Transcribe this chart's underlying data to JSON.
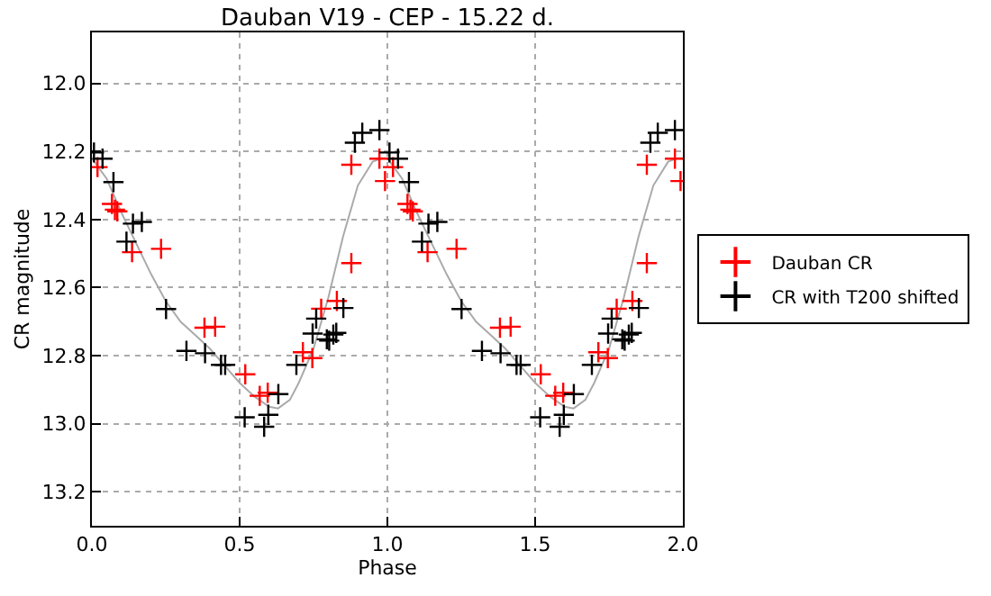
{
  "chart_data": {
    "type": "scatter",
    "title": "Dauban V19 - CEP - 15.22 d.",
    "xlabel": "Phase",
    "ylabel": "CR magnitude",
    "xlim": [
      0,
      2
    ],
    "xticks": [
      {
        "value": 0,
        "label": "0.0"
      },
      0.5,
      {
        "value": 1,
        "label": "1.0"
      },
      1.5,
      {
        "value": 2,
        "label": "2.0"
      }
    ],
    "ylim": [
      13.3,
      11.85
    ],
    "yticks": [
      {
        "value": 12,
        "label": "12.0"
      },
      12.2,
      12.4,
      12.6,
      12.8,
      {
        "value": 13,
        "label": "13.0"
      },
      13.2
    ],
    "grid": true,
    "legend": "right",
    "marker": "cross",
    "series": [
      {
        "type": "line",
        "color": "#aaaaaa",
        "marker": "none",
        "line_style": "solid",
        "x": [
          0,
          0.05,
          0.1,
          0.15,
          0.2,
          0.25,
          0.3,
          0.35,
          0.4,
          0.45,
          0.5,
          0.55,
          0.6,
          0.63,
          0.67,
          0.7,
          0.75,
          0.8,
          0.85,
          0.9,
          0.95,
          0.98,
          1.0,
          1.05,
          1.1,
          1.15,
          1.2,
          1.25,
          1.3,
          1.35,
          1.4,
          1.45,
          1.5,
          1.55,
          1.6,
          1.63,
          1.67,
          1.7,
          1.75,
          1.8,
          1.85,
          1.9,
          1.95,
          1.98,
          2.0
        ],
        "values": [
          12.22,
          12.28,
          12.38,
          12.47,
          12.56,
          12.64,
          12.7,
          12.74,
          12.78,
          12.83,
          12.88,
          12.92,
          12.95,
          12.955,
          12.93,
          12.88,
          12.78,
          12.63,
          12.45,
          12.3,
          12.23,
          12.22,
          12.22,
          12.28,
          12.38,
          12.47,
          12.56,
          12.64,
          12.7,
          12.74,
          12.78,
          12.83,
          12.88,
          12.92,
          12.95,
          12.955,
          12.93,
          12.88,
          12.78,
          12.63,
          12.45,
          12.3,
          12.23,
          12.22,
          12.22
        ]
      },
      {
        "name": "Dauban CR",
        "color": "#ff0000",
        "x": [
          0.019,
          0.068,
          0.078,
          0.086,
          0.136,
          0.234,
          0.381,
          0.417,
          0.519,
          0.568,
          0.595,
          0.714,
          0.746,
          0.776,
          0.829,
          0.878,
          0.878,
          0.973,
          0.992,
          1.019,
          1.068,
          1.078,
          1.086,
          1.136,
          1.234,
          1.381,
          1.417,
          1.519,
          1.568,
          1.595,
          1.714,
          1.746,
          1.776,
          1.829,
          1.878,
          1.878,
          1.973,
          1.992
        ],
        "values": [
          12.246,
          12.354,
          12.371,
          12.376,
          12.496,
          12.486,
          12.718,
          12.715,
          12.855,
          12.918,
          12.909,
          12.79,
          12.807,
          12.662,
          12.639,
          12.528,
          12.239,
          12.221,
          12.287,
          12.246,
          12.354,
          12.371,
          12.376,
          12.496,
          12.486,
          12.718,
          12.715,
          12.855,
          12.918,
          12.909,
          12.79,
          12.807,
          12.662,
          12.639,
          12.528,
          12.239,
          12.221,
          12.287
        ]
      },
      {
        "name": "CR with T200 shifted",
        "color": "#000000",
        "x": [
          0.007,
          0.036,
          0.073,
          0.117,
          0.139,
          0.169,
          0.251,
          0.32,
          0.383,
          0.437,
          0.451,
          0.517,
          0.583,
          0.597,
          0.631,
          0.692,
          0.747,
          0.759,
          0.795,
          0.803,
          0.817,
          0.827,
          0.851,
          0.89,
          0.915,
          0.973,
          1.007,
          1.036,
          1.073,
          1.117,
          1.139,
          1.169,
          1.251,
          1.32,
          1.383,
          1.437,
          1.451,
          1.517,
          1.583,
          1.597,
          1.631,
          1.692,
          1.747,
          1.759,
          1.795,
          1.803,
          1.817,
          1.827,
          1.851,
          1.89,
          1.915,
          1.973
        ],
        "values": [
          12.203,
          12.221,
          12.29,
          12.465,
          12.412,
          12.407,
          12.663,
          12.786,
          12.793,
          12.827,
          12.827,
          12.981,
          13.009,
          12.974,
          12.913,
          12.827,
          12.735,
          12.691,
          12.752,
          12.756,
          12.738,
          12.733,
          12.66,
          12.174,
          12.145,
          12.137,
          12.203,
          12.221,
          12.29,
          12.465,
          12.412,
          12.407,
          12.663,
          12.786,
          12.793,
          12.827,
          12.827,
          12.981,
          13.009,
          12.974,
          12.913,
          12.827,
          12.735,
          12.691,
          12.752,
          12.756,
          12.738,
          12.733,
          12.66,
          12.174,
          12.145,
          12.137
        ]
      }
    ]
  }
}
